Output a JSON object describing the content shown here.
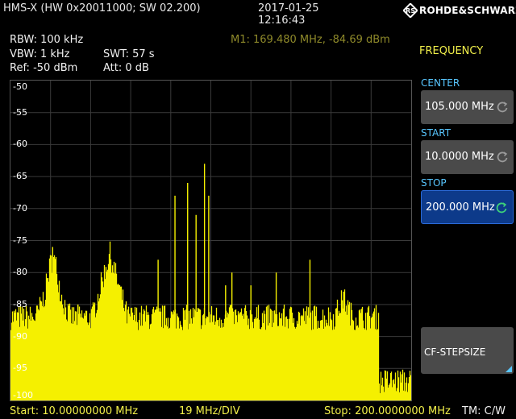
{
  "header": {
    "model": "HMS-X (HW 0x20011000; SW 02.200)",
    "date": "2017-01-25",
    "time": "12:16:43",
    "logo_text": "ROHDE&SCHWARZ"
  },
  "info": {
    "rbw": "RBW: 100 kHz",
    "vbw": "VBW: 1 kHz",
    "swt": "SWT: 57 s",
    "ref": "Ref: -50 dBm",
    "att": "Att: 0 dB",
    "marker": "M1: 169.480 MHz, -84.69 dBm"
  },
  "softkeys": {
    "menu_title": "FREQUENCY",
    "center_label": "CENTER",
    "center_value": "105.000 MHz",
    "start_label": "START",
    "start_value": "10.0000 MHz",
    "stop_label": "STOP",
    "stop_value": "200.000 MHz",
    "cf_step_label": "CF-STEPSIZE"
  },
  "footer": {
    "start": "Start: 10.00000000 MHz",
    "div": "19 MHz/DIV",
    "stop": "Stop: 200.0000000 MHz",
    "tm": "TM: C/W"
  },
  "colors": {
    "trace": "#f5f000",
    "grid": "#3a3a3a",
    "accent": "#58c6ff",
    "active_key": "#0d3a8a"
  },
  "chart_data": {
    "type": "line",
    "x_unit": "MHz",
    "y_unit": "dBm",
    "xlim": [
      10,
      200
    ],
    "ylim": [
      -100,
      -50
    ],
    "y_ticks": [
      -50,
      -55,
      -60,
      -65,
      -70,
      -75,
      -80,
      -85,
      -90,
      -95,
      -100
    ],
    "grid": true,
    "peaks": [
      {
        "x": 20,
        "y": -94
      },
      {
        "x": 30,
        "y": -76
      },
      {
        "x": 42,
        "y": -85
      },
      {
        "x": 55,
        "y": -90
      },
      {
        "x": 57,
        "y": -80
      },
      {
        "x": 80,
        "y": -78
      },
      {
        "x": 88,
        "y": -68
      },
      {
        "x": 94,
        "y": -66
      },
      {
        "x": 98,
        "y": -71
      },
      {
        "x": 102,
        "y": -63
      },
      {
        "x": 104,
        "y": -68
      },
      {
        "x": 112,
        "y": -82
      },
      {
        "x": 115,
        "y": -80
      },
      {
        "x": 124,
        "y": -82
      },
      {
        "x": 136,
        "y": -80
      },
      {
        "x": 152,
        "y": -78
      },
      {
        "x": 168,
        "y": -83
      },
      {
        "x": 184,
        "y": -91
      }
    ]
  }
}
